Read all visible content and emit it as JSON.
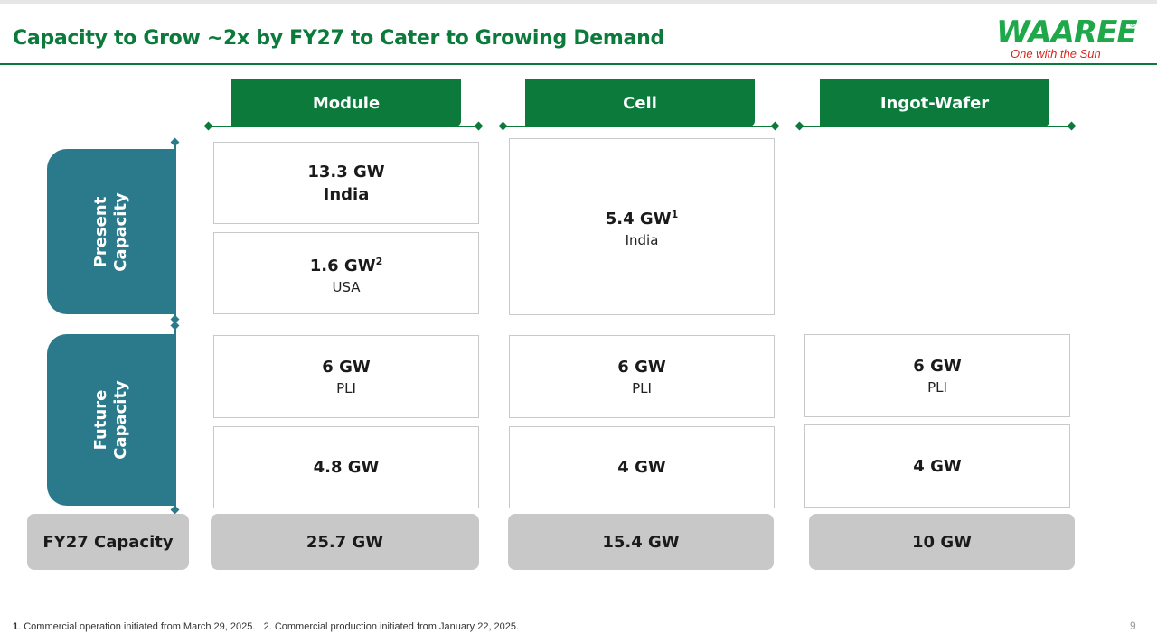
{
  "title": "Capacity to Grow ~2x by FY27 to Cater to Growing Demand",
  "logo": {
    "word": "WAAREE",
    "reg": "®",
    "tagline": "One with the Sun"
  },
  "columns": [
    {
      "label": "Module"
    },
    {
      "label": "Cell"
    },
    {
      "label": "Ingot-Wafer"
    }
  ],
  "rows": {
    "present": {
      "line1": "Present",
      "line2": "Capacity"
    },
    "future": {
      "line1": "Future",
      "line2": "Capacity"
    }
  },
  "cells": {
    "module_present_1": {
      "value": "13.3 GW",
      "sub": "India"
    },
    "module_present_2": {
      "value": "1.6 GW",
      "sup": "2",
      "sub": "USA"
    },
    "cell_present": {
      "value": "5.4 GW",
      "sup": "1",
      "sub": "India"
    },
    "module_future_1": {
      "value": "6 GW",
      "sub": "PLI"
    },
    "module_future_2": {
      "value": "4.8 GW"
    },
    "cell_future_1": {
      "value": "6 GW",
      "sub": "PLI"
    },
    "cell_future_2": {
      "value": "4 GW"
    },
    "wafer_future_1": {
      "value": "6 GW",
      "sub": "PLI"
    },
    "wafer_future_2": {
      "value": "4 GW"
    }
  },
  "totals": {
    "label": "FY27 Capacity",
    "module": "25.7 GW",
    "cell": "15.4 GW",
    "wafer": "10 GW"
  },
  "footnote": {
    "n1": "1",
    "t1": ". Commercial operation initiated from March 29, 2025.",
    "n2": "2",
    "t2": ". Commercial production initiated from January 22, 2025."
  },
  "page_number": "9",
  "colors": {
    "green": "#0b7a3b",
    "teal": "#2a7a8c",
    "grey": "#c8c8c8",
    "logo_green": "#1ea84a",
    "logo_red": "#d8261d"
  }
}
